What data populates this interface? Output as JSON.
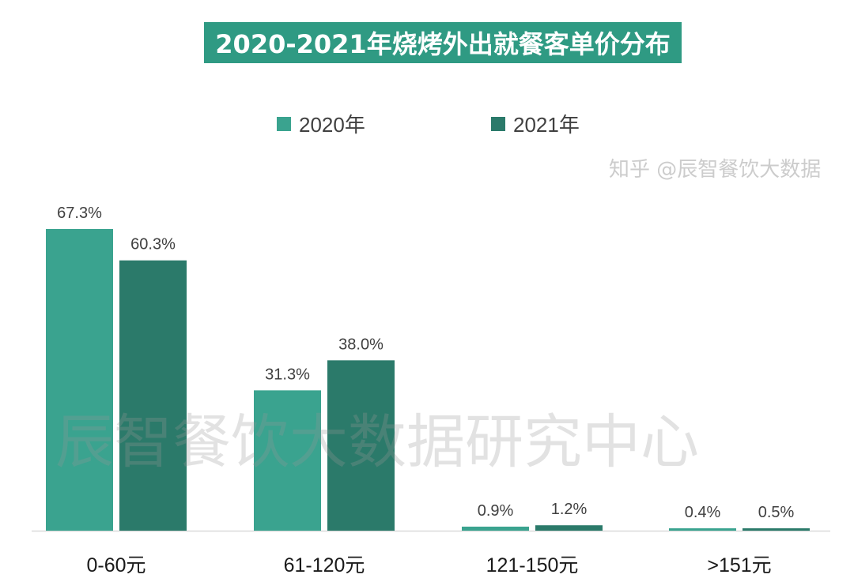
{
  "chart_data": {
    "type": "bar",
    "title": "2020-2021年烧烤外出就餐客单价分布",
    "categories": [
      "0-60元",
      "61-120元",
      "121-150元",
      ">151元"
    ],
    "series": [
      {
        "name": "2020年",
        "values": [
          67.3,
          31.3,
          0.9,
          0.4
        ],
        "labels": [
          "67.3%",
          "31.3%",
          "0.9%",
          "0.4%"
        ],
        "color": "#3aa38f"
      },
      {
        "name": "2021年",
        "values": [
          60.3,
          38.0,
          1.2,
          0.5
        ],
        "labels": [
          "60.3%",
          "38.0%",
          "1.2%",
          "0.5%"
        ],
        "color": "#2b7a6a"
      }
    ],
    "ylim": [
      0,
      70
    ],
    "grid": false,
    "legend": "top-center",
    "axis_color": "#d9d9d9"
  },
  "watermarks": {
    "main": "辰智餐饮大数据研究中心",
    "corner": "知乎 @辰智餐饮大数据"
  }
}
